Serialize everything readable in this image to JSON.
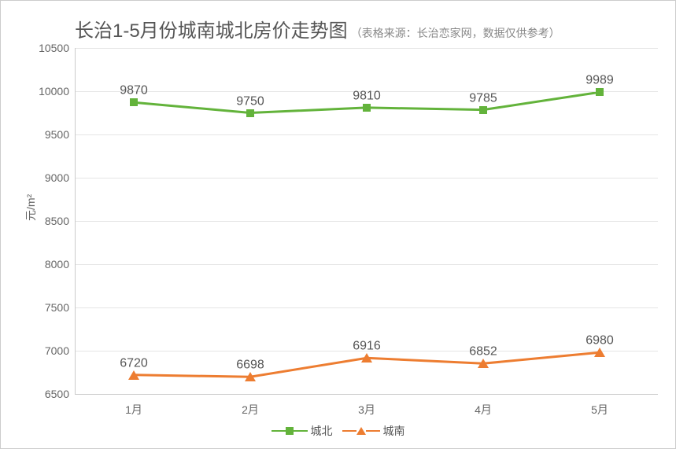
{
  "title": "长治1-5月份城南城北房价走势图",
  "subtitle": "（表格来源：长治恋家网，数据仅供参考）",
  "y_axis_label": "元/m²",
  "chart": {
    "type": "line",
    "categories": [
      "1月",
      "2月",
      "3月",
      "4月",
      "5月"
    ],
    "y_min": 6500,
    "y_max": 10500,
    "y_step": 500,
    "grid_color": "#e5e5e5",
    "axis_color": "#cccccc",
    "tick_color": "#666666",
    "tick_fontsize": 14,
    "title_fontsize": 24,
    "subtitle_fontsize": 14,
    "label_fontsize": 16,
    "background_color": "#ffffff",
    "series": [
      {
        "name": "城北",
        "marker": "square",
        "color": "#63b33b",
        "line_width": 3,
        "values": [
          9870,
          9750,
          9810,
          9785,
          9989
        ]
      },
      {
        "name": "城南",
        "marker": "triangle",
        "color": "#ed7d31",
        "line_width": 3,
        "values": [
          6720,
          6698,
          6916,
          6852,
          6980
        ]
      }
    ]
  },
  "legend_labels": {
    "north": "城北",
    "south": "城南"
  }
}
